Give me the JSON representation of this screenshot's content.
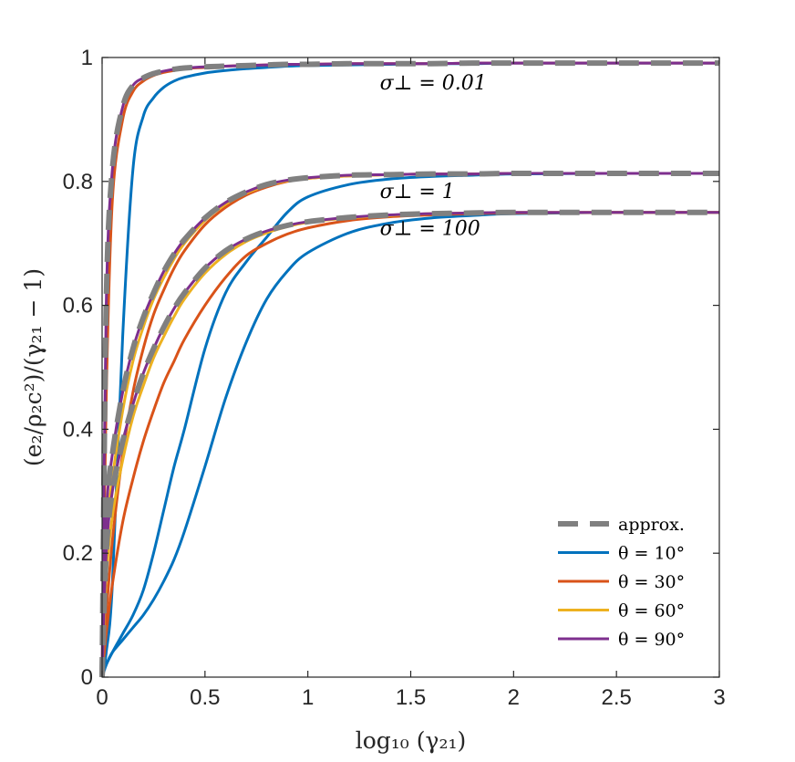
{
  "chart_data": {
    "type": "line",
    "title": "",
    "xlabel": "log₁₀ (γ₂₁)",
    "ylabel": "(e₂/ρ₂c²)/(γ₂₁ − 1)",
    "xlim": [
      0,
      3
    ],
    "ylim": [
      0,
      1
    ],
    "xticks": [
      0,
      0.5,
      1,
      1.5,
      2,
      2.5,
      3
    ],
    "xtick_labels": [
      "0",
      "0.5",
      "1",
      "1.5",
      "2",
      "2.5",
      "3"
    ],
    "yticks": [
      0,
      0.2,
      0.4,
      0.6,
      0.8,
      1
    ],
    "ytick_labels": [
      "0",
      "0.2",
      "0.4",
      "0.6",
      "0.8",
      "1"
    ],
    "grid": false,
    "legend_position": "bottom-right",
    "legend": [
      {
        "label": "approx.",
        "color": "#808080",
        "style": "dashed"
      },
      {
        "label": "θ = 10°",
        "color": "#0072BD",
        "style": "solid"
      },
      {
        "label": "θ = 30°",
        "color": "#D95319",
        "style": "solid"
      },
      {
        "label": "θ = 60°",
        "color": "#EDB120",
        "style": "solid"
      },
      {
        "label": "θ = 90°",
        "color": "#7E2F8E",
        "style": "solid"
      }
    ],
    "annotations": [
      {
        "text": "σ⊥ = 0.01",
        "x": 1.35,
        "y": 0.96
      },
      {
        "text": "σ⊥ = 1",
        "x": 1.35,
        "y": 0.785
      },
      {
        "text": "σ⊥ = 100",
        "x": 1.35,
        "y": 0.725
      }
    ],
    "x": [
      0,
      0.02,
      0.05,
      0.1,
      0.15,
      0.2,
      0.25,
      0.3,
      0.35,
      0.4,
      0.5,
      0.6,
      0.7,
      0.8,
      0.9,
      1.0,
      1.2,
      1.4,
      1.6,
      1.8,
      2.0,
      2.5,
      3.0
    ],
    "series": [
      {
        "name": "approx. σ⊥ = 0.01",
        "group": "σ⊥ = 0.01",
        "color": "#808080",
        "style": "dashed",
        "values": [
          0.0,
          0.6,
          0.82,
          0.92,
          0.955,
          0.967,
          0.974,
          0.978,
          0.981,
          0.983,
          0.985,
          0.986,
          0.987,
          0.988,
          0.989,
          0.989,
          0.99,
          0.99,
          0.99,
          0.991,
          0.991,
          0.991,
          0.991
        ]
      },
      {
        "name": "θ = 90°, σ⊥ = 0.01",
        "group": "σ⊥ = 0.01",
        "color": "#7E2F8E",
        "style": "solid",
        "values": [
          0.0,
          0.6,
          0.82,
          0.92,
          0.955,
          0.967,
          0.974,
          0.978,
          0.981,
          0.983,
          0.985,
          0.986,
          0.987,
          0.988,
          0.989,
          0.989,
          0.99,
          0.99,
          0.99,
          0.991,
          0.991,
          0.991,
          0.991
        ]
      },
      {
        "name": "θ = 30°, σ⊥ = 0.01",
        "group": "σ⊥ = 0.01",
        "color": "#D95319",
        "style": "solid",
        "values": [
          0.0,
          0.45,
          0.77,
          0.9,
          0.945,
          0.962,
          0.971,
          0.976,
          0.979,
          0.982,
          0.984,
          0.986,
          0.987,
          0.988,
          0.989,
          0.989,
          0.99,
          0.99,
          0.99,
          0.991,
          0.991,
          0.991,
          0.991
        ]
      },
      {
        "name": "θ = 10°, σ⊥ = 0.01",
        "group": "σ⊥ = 0.01",
        "color": "#0072BD",
        "style": "solid",
        "values": [
          0.0,
          0.04,
          0.15,
          0.55,
          0.82,
          0.905,
          0.935,
          0.952,
          0.962,
          0.968,
          0.975,
          0.979,
          0.982,
          0.984,
          0.986,
          0.987,
          0.988,
          0.989,
          0.99,
          0.99,
          0.991,
          0.991,
          0.991
        ]
      },
      {
        "name": "approx. σ⊥ = 1",
        "group": "σ⊥ = 1",
        "color": "#808080",
        "style": "dashed",
        "values": [
          0.0,
          0.26,
          0.36,
          0.46,
          0.53,
          0.58,
          0.62,
          0.655,
          0.683,
          0.706,
          0.741,
          0.766,
          0.783,
          0.795,
          0.802,
          0.806,
          0.81,
          0.811,
          0.812,
          0.812,
          0.813,
          0.813,
          0.813
        ]
      },
      {
        "name": "θ = 90°, σ⊥ = 1",
        "group": "σ⊥ = 1",
        "color": "#7E2F8E",
        "style": "solid",
        "values": [
          0.0,
          0.26,
          0.36,
          0.46,
          0.53,
          0.58,
          0.62,
          0.655,
          0.683,
          0.706,
          0.741,
          0.766,
          0.783,
          0.795,
          0.802,
          0.806,
          0.81,
          0.811,
          0.812,
          0.812,
          0.813,
          0.813,
          0.813
        ]
      },
      {
        "name": "θ = 60°, σ⊥ = 1",
        "group": "σ⊥ = 1",
        "color": "#EDB120",
        "style": "solid",
        "values": [
          0.0,
          0.22,
          0.32,
          0.43,
          0.51,
          0.565,
          0.61,
          0.645,
          0.675,
          0.7,
          0.737,
          0.763,
          0.781,
          0.793,
          0.801,
          0.805,
          0.809,
          0.811,
          0.812,
          0.812,
          0.813,
          0.813,
          0.813
        ]
      },
      {
        "name": "θ = 30°, σ⊥ = 1",
        "group": "σ⊥ = 1",
        "color": "#D95319",
        "style": "solid",
        "values": [
          0.0,
          0.1,
          0.22,
          0.36,
          0.46,
          0.53,
          0.585,
          0.625,
          0.66,
          0.688,
          0.73,
          0.758,
          0.778,
          0.791,
          0.8,
          0.805,
          0.809,
          0.811,
          0.812,
          0.812,
          0.813,
          0.813,
          0.813
        ]
      },
      {
        "name": "θ = 10°, σ⊥ = 1",
        "group": "σ⊥ = 1",
        "color": "#0072BD",
        "style": "solid",
        "values": [
          0.0,
          0.02,
          0.04,
          0.07,
          0.1,
          0.14,
          0.2,
          0.27,
          0.34,
          0.4,
          0.53,
          0.62,
          0.67,
          0.71,
          0.75,
          0.775,
          0.795,
          0.804,
          0.808,
          0.81,
          0.812,
          0.813,
          0.813
        ]
      },
      {
        "name": "approx. σ⊥ = 100",
        "group": "σ⊥ = 100",
        "color": "#808080",
        "style": "dashed",
        "values": [
          0.0,
          0.2,
          0.3,
          0.38,
          0.44,
          0.49,
          0.53,
          0.565,
          0.595,
          0.62,
          0.66,
          0.688,
          0.707,
          0.72,
          0.729,
          0.735,
          0.742,
          0.746,
          0.748,
          0.749,
          0.75,
          0.75,
          0.75
        ]
      },
      {
        "name": "θ = 90°, σ⊥ = 100",
        "group": "σ⊥ = 100",
        "color": "#7E2F8E",
        "style": "solid",
        "values": [
          0.0,
          0.2,
          0.3,
          0.38,
          0.44,
          0.49,
          0.53,
          0.565,
          0.595,
          0.62,
          0.66,
          0.688,
          0.707,
          0.72,
          0.729,
          0.735,
          0.742,
          0.746,
          0.748,
          0.749,
          0.75,
          0.75,
          0.75
        ]
      },
      {
        "name": "θ = 60°, σ⊥ = 100",
        "group": "σ⊥ = 100",
        "color": "#EDB120",
        "style": "solid",
        "values": [
          0.0,
          0.16,
          0.26,
          0.35,
          0.42,
          0.47,
          0.515,
          0.55,
          0.582,
          0.61,
          0.652,
          0.682,
          0.703,
          0.717,
          0.727,
          0.734,
          0.741,
          0.745,
          0.748,
          0.749,
          0.75,
          0.75,
          0.75
        ]
      },
      {
        "name": "θ = 30°, σ⊥ = 100",
        "group": "σ⊥ = 100",
        "color": "#D95319",
        "style": "solid",
        "values": [
          0.0,
          0.07,
          0.15,
          0.25,
          0.32,
          0.38,
          0.43,
          0.475,
          0.51,
          0.545,
          0.6,
          0.645,
          0.68,
          0.7,
          0.715,
          0.725,
          0.737,
          0.743,
          0.746,
          0.748,
          0.749,
          0.75,
          0.75
        ]
      },
      {
        "name": "θ = 10°, σ⊥ = 100",
        "group": "σ⊥ = 100",
        "color": "#0072BD",
        "style": "solid",
        "values": [
          0.0,
          0.02,
          0.04,
          0.06,
          0.08,
          0.1,
          0.125,
          0.155,
          0.19,
          0.235,
          0.34,
          0.45,
          0.54,
          0.61,
          0.655,
          0.685,
          0.717,
          0.733,
          0.741,
          0.745,
          0.748,
          0.75,
          0.75
        ]
      }
    ]
  }
}
